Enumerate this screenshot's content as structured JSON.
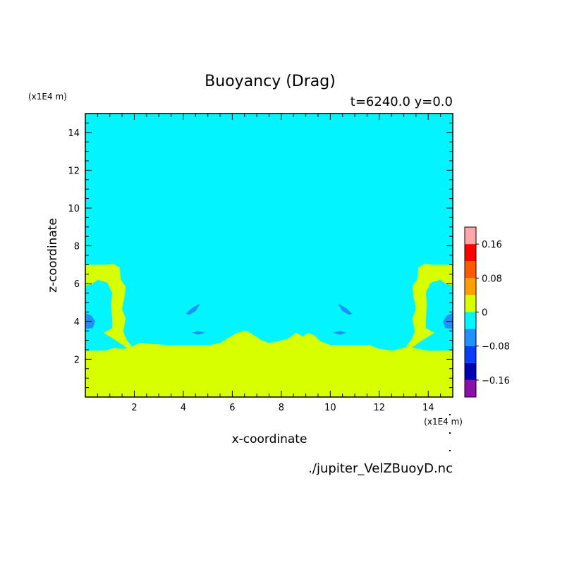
{
  "chart_data": {
    "type": "heatmap",
    "title": "Buoyancy (Drag)",
    "subtitle": "t=6240.0 y=0.0",
    "xlabel": "x-coordinate",
    "ylabel": "z-coordinate",
    "x_unit": "(x1E4 m)",
    "y_unit": "(x1E4 m)",
    "xlim": [
      0,
      15
    ],
    "ylim": [
      0,
      15
    ],
    "xticks": [
      2,
      4,
      6,
      8,
      10,
      12,
      14
    ],
    "yticks": [
      2,
      4,
      6,
      8,
      10,
      12,
      14
    ],
    "xtick_labels": [
      "2",
      "4",
      "6",
      "8",
      "10",
      "12",
      "14"
    ],
    "ytick_labels": [
      "2",
      "4",
      "6",
      "8",
      "10",
      "12",
      "14"
    ],
    "background_level": "0 to -0.04",
    "colorbar": {
      "labels": [
        {
          "value": 0.16,
          "text": "0.16"
        },
        {
          "value": 0.08,
          "text": "0.08"
        },
        {
          "value": 0,
          "text": "0"
        },
        {
          "value": -0.08,
          "text": "−0.08"
        },
        {
          "value": -0.16,
          "text": "−0.16"
        }
      ],
      "bands": [
        {
          "from": -0.2,
          "to": -0.16,
          "color": "#8a10a8"
        },
        {
          "from": -0.16,
          "to": -0.12,
          "color": "#0000b4"
        },
        {
          "from": -0.12,
          "to": -0.08,
          "color": "#0a3cff"
        },
        {
          "from": -0.08,
          "to": -0.04,
          "color": "#1e90ff"
        },
        {
          "from": -0.04,
          "to": 0,
          "color": "#00f5ff"
        },
        {
          "from": 0,
          "to": 0.04,
          "color": "#d8ff00"
        },
        {
          "from": 0.04,
          "to": 0.08,
          "color": "#ffa000"
        },
        {
          "from": 0.08,
          "to": 0.12,
          "color": "#ff5a00"
        },
        {
          "from": 0.12,
          "to": 0.16,
          "color": "#ff0000"
        },
        {
          "from": 0.16,
          "to": 0.2,
          "color": "#ffa8a8"
        }
      ]
    },
    "regions": [
      {
        "name": "lower-positive-layer",
        "level": "0 to 0.04",
        "color": "#d8ff00",
        "polygon": [
          [
            0,
            0
          ],
          [
            15,
            0
          ],
          [
            15,
            2.45
          ],
          [
            14,
            2.45
          ],
          [
            13.6,
            2.55
          ],
          [
            13.2,
            2.65
          ],
          [
            12.8,
            2.55
          ],
          [
            12.6,
            2.45
          ],
          [
            12.0,
            2.55
          ],
          [
            11.6,
            2.75
          ],
          [
            10.8,
            2.75
          ],
          [
            10.0,
            2.75
          ],
          [
            9.6,
            2.95
          ],
          [
            9.35,
            3.25
          ],
          [
            9.1,
            3.4
          ],
          [
            8.9,
            3.2
          ],
          [
            8.6,
            3.4
          ],
          [
            8.3,
            3.1
          ],
          [
            7.9,
            2.95
          ],
          [
            7.5,
            2.85
          ],
          [
            7.2,
            3.0
          ],
          [
            6.9,
            3.25
          ],
          [
            6.6,
            3.5
          ],
          [
            6.2,
            3.4
          ],
          [
            5.8,
            3.1
          ],
          [
            5.5,
            2.85
          ],
          [
            5.1,
            2.75
          ],
          [
            4.4,
            2.75
          ],
          [
            3.4,
            2.75
          ],
          [
            2.8,
            2.8
          ],
          [
            2.2,
            2.85
          ],
          [
            1.8,
            2.6
          ],
          [
            1.5,
            2.55
          ],
          [
            1.2,
            2.6
          ],
          [
            0.8,
            2.45
          ],
          [
            0,
            2.45
          ]
        ]
      },
      {
        "name": "left-positive-column",
        "level": "0 to 0.04",
        "color": "#d8ff00",
        "polygon": [
          [
            0,
            7.0
          ],
          [
            0.85,
            7.0
          ],
          [
            1.15,
            7.05
          ],
          [
            1.4,
            6.85
          ],
          [
            1.45,
            6.2
          ],
          [
            1.65,
            5.85
          ],
          [
            1.6,
            5.3
          ],
          [
            1.5,
            4.65
          ],
          [
            1.65,
            4.15
          ],
          [
            1.55,
            3.45
          ],
          [
            1.7,
            3.0
          ],
          [
            1.9,
            2.7
          ],
          [
            1.75,
            2.55
          ],
          [
            1.3,
            2.95
          ],
          [
            1.0,
            3.2
          ],
          [
            0.75,
            3.4
          ],
          [
            1.1,
            3.65
          ],
          [
            1.1,
            4.1
          ],
          [
            1.05,
            4.9
          ],
          [
            1.1,
            5.5
          ],
          [
            0.9,
            6.05
          ],
          [
            0.5,
            6.2
          ],
          [
            0.3,
            6.0
          ],
          [
            0,
            5.9
          ]
        ]
      },
      {
        "name": "right-positive-column",
        "level": "0 to 0.04",
        "color": "#d8ff00",
        "polygon": [
          [
            15,
            7.0
          ],
          [
            14.15,
            7.0
          ],
          [
            13.85,
            7.05
          ],
          [
            13.6,
            6.85
          ],
          [
            13.55,
            6.2
          ],
          [
            13.35,
            5.85
          ],
          [
            13.4,
            5.3
          ],
          [
            13.5,
            4.65
          ],
          [
            13.35,
            4.15
          ],
          [
            13.45,
            3.45
          ],
          [
            13.3,
            3.0
          ],
          [
            13.1,
            2.7
          ],
          [
            13.25,
            2.55
          ],
          [
            13.7,
            2.95
          ],
          [
            14.0,
            3.2
          ],
          [
            14.25,
            3.4
          ],
          [
            13.9,
            3.65
          ],
          [
            13.9,
            4.1
          ],
          [
            13.95,
            4.9
          ],
          [
            13.9,
            5.5
          ],
          [
            14.1,
            6.05
          ],
          [
            14.5,
            6.2
          ],
          [
            14.7,
            6.0
          ],
          [
            15,
            5.9
          ]
        ]
      },
      {
        "name": "left-negative-lobe",
        "level": "-0.08 to -0.04",
        "color": "#1e90ff",
        "polygon": [
          [
            0,
            4.45
          ],
          [
            0.25,
            4.3
          ],
          [
            0.4,
            4.0
          ],
          [
            0.3,
            3.65
          ],
          [
            0,
            3.6
          ]
        ]
      },
      {
        "name": "right-negative-lobe",
        "level": "-0.08 to -0.04",
        "color": "#1e90ff",
        "polygon": [
          [
            15,
            4.45
          ],
          [
            14.75,
            4.3
          ],
          [
            14.6,
            4.0
          ],
          [
            14.7,
            3.65
          ],
          [
            15,
            3.6
          ]
        ]
      },
      {
        "name": "left-negative-streak",
        "level": "-0.08 to -0.04",
        "color": "#1e90ff",
        "polygon": [
          [
            4.1,
            4.4
          ],
          [
            4.35,
            4.7
          ],
          [
            4.7,
            4.95
          ],
          [
            4.5,
            4.55
          ],
          [
            4.25,
            4.35
          ]
        ]
      },
      {
        "name": "right-negative-streak",
        "level": "-0.08 to -0.04",
        "color": "#1e90ff",
        "polygon": [
          [
            10.9,
            4.4
          ],
          [
            10.65,
            4.7
          ],
          [
            10.3,
            4.95
          ],
          [
            10.5,
            4.55
          ],
          [
            10.75,
            4.35
          ]
        ]
      },
      {
        "name": "left-negative-blip",
        "level": "-0.08 to -0.04",
        "color": "#1e90ff",
        "polygon": [
          [
            4.35,
            3.4
          ],
          [
            4.6,
            3.5
          ],
          [
            4.9,
            3.4
          ],
          [
            4.6,
            3.3
          ]
        ]
      },
      {
        "name": "right-negative-blip",
        "level": "-0.08 to -0.04",
        "color": "#1e90ff",
        "polygon": [
          [
            10.65,
            3.4
          ],
          [
            10.4,
            3.5
          ],
          [
            10.1,
            3.4
          ],
          [
            10.4,
            3.3
          ]
        ]
      }
    ],
    "source_label": "./jupiter_VelZBuoyD.nc"
  }
}
